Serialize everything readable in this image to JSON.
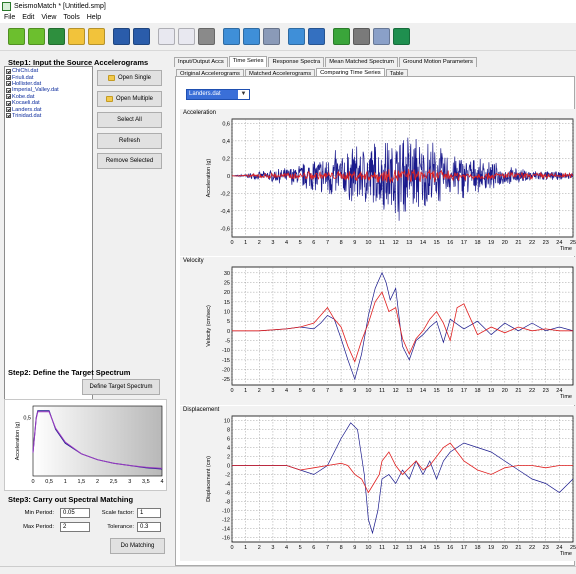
{
  "window": {
    "title": "SeismoMatch * [Untitled.smp]"
  },
  "menu": [
    "File",
    "Edit",
    "View",
    "Tools",
    "Help"
  ],
  "toolbar": {
    "icons": [
      {
        "name": "new-project-icon",
        "color": "#6cbf2e"
      },
      {
        "name": "open-project-icon",
        "color": "#6cbf2e"
      },
      {
        "name": "save-project-icon",
        "color": "#2e8f3e"
      },
      {
        "name": "open-folder-icon",
        "color": "#f2c33b"
      },
      {
        "name": "open-folder-2-icon",
        "color": "#f2c33b"
      },
      {
        "name": "save-disk-icon",
        "color": "#2a5caa"
      },
      {
        "name": "save-as-disk-icon",
        "color": "#2a5caa"
      },
      {
        "name": "report-icon",
        "color": "#e8e8f0"
      },
      {
        "name": "copy-icon",
        "color": "#e8e8f0"
      },
      {
        "name": "print-icon",
        "color": "#8a8a8a"
      },
      {
        "name": "zoom-in-icon",
        "color": "#3f8fd8"
      },
      {
        "name": "zoom-out-icon",
        "color": "#3f8fd8"
      },
      {
        "name": "settings-gear-icon",
        "color": "#8a9ab8"
      },
      {
        "name": "chart-icon",
        "color": "#3f8fd8"
      },
      {
        "name": "layers-icon",
        "color": "#3470c0"
      },
      {
        "name": "help-icon",
        "color": "#3aa53a"
      },
      {
        "name": "tools-icon",
        "color": "#7a7a7a"
      },
      {
        "name": "link-icon",
        "color": "#8aa0c8"
      },
      {
        "name": "globe-icon",
        "color": "#1f8f4f"
      }
    ]
  },
  "left": {
    "step1": "Step1: Input the Source Accelerograms",
    "files": [
      "ChiChi.dat",
      "Friuli.dat",
      "Hollister.dat",
      "Imperial_Valley.dat",
      "Kobe.dat",
      "Kocaeli.dat",
      "Landers.dat",
      "Trinidad.dat"
    ],
    "buttons": {
      "open_single": "Open Single",
      "open_multiple": "Open Multiple",
      "select_all": "Select All",
      "refresh": "Refresh",
      "remove_selected": "Remove Selected"
    },
    "step2": "Step2: Define the Target Spectrum",
    "define_target": "Define Target Spectrum",
    "step3": "Step3: Carry out Spectral Matching",
    "min_period_label": "Min Period:",
    "min_period": "0.05",
    "max_period_label": "Max Period:",
    "max_period": "2",
    "scale_factor_label": "Scale factor:",
    "scale_factor": "1",
    "tolerance_label": "Tolerance:",
    "tolerance": "0.3",
    "do_matching": "Do Matching"
  },
  "tabs_top": [
    "Input/Output Accs",
    "Time Series",
    "Response Spectra",
    "Mean Matched Spectrum",
    "Ground Motion Parameters"
  ],
  "tabs_sub": [
    "Original Accelerograms",
    "Matched Accelerograms",
    "Comparing Time Series",
    "Table"
  ],
  "selected_record": "Landers.dat",
  "colors": {
    "original": "#1a1a8c",
    "matched": "#e02020",
    "dropdown": "#3a6fd8"
  },
  "chart_data": [
    {
      "type": "line",
      "title": "",
      "xlabel": "",
      "ylabel": "Acceleration (g)",
      "xlim": [
        0,
        25
      ],
      "ylim": [
        -0.7,
        0.65
      ],
      "x_ticks": [
        0,
        1,
        2,
        3,
        4,
        5,
        6,
        7,
        8,
        9,
        10,
        11,
        12,
        13,
        14,
        15,
        16,
        17,
        18,
        19,
        20,
        21,
        22,
        23,
        24,
        25
      ],
      "y_ticks": [
        0.6,
        0.4,
        0.2,
        0,
        -0.2,
        -0.4,
        -0.6
      ],
      "panel_label": "Acceleration",
      "x_axis_label": "Time",
      "series": [
        {
          "role": "original",
          "envelope": [
            [
              2,
              0.05
            ],
            [
              4,
              0.1
            ],
            [
              6,
              0.2
            ],
            [
              7,
              0.32
            ],
            [
              8,
              0.3
            ],
            [
              9,
              0.38
            ],
            [
              10,
              0.45
            ],
            [
              11,
              0.42
            ],
            [
              12,
              0.55
            ],
            [
              13,
              0.52
            ],
            [
              14,
              0.45
            ],
            [
              14.5,
              0.5
            ],
            [
              15,
              0.4
            ],
            [
              16,
              0.28
            ],
            [
              17,
              0.3
            ],
            [
              18,
              0.2
            ],
            [
              19,
              0.18
            ],
            [
              20,
              0.12
            ],
            [
              22,
              0.08
            ],
            [
              25,
              0.04
            ]
          ]
        },
        {
          "role": "matched",
          "envelope": [
            [
              2,
              0.03
            ],
            [
              5,
              0.05
            ],
            [
              8,
              0.06
            ],
            [
              10,
              0.08
            ],
            [
              12,
              0.1
            ],
            [
              15,
              0.08
            ],
            [
              18,
              0.05
            ],
            [
              25,
              0.03
            ]
          ]
        }
      ]
    },
    {
      "type": "line",
      "title": "",
      "xlabel": "",
      "ylabel": "Velocity (cm/sec)",
      "xlim": [
        0,
        25
      ],
      "ylim": [
        -28,
        33
      ],
      "x_ticks": [
        0,
        1,
        2,
        3,
        4,
        5,
        6,
        7,
        8,
        9,
        10,
        11,
        12,
        13,
        14,
        15,
        16,
        17,
        18,
        19,
        20,
        21,
        22,
        23,
        24
      ],
      "y_ticks": [
        30,
        25,
        20,
        15,
        10,
        5,
        0,
        -5,
        -10,
        -15,
        -20,
        -25
      ],
      "panel_label": "Velocity",
      "x_axis_label": "Time",
      "series": [
        {
          "role": "original",
          "points": [
            [
              0,
              0
            ],
            [
              2,
              0
            ],
            [
              4,
              1
            ],
            [
              5,
              2
            ],
            [
              6,
              1
            ],
            [
              6.5,
              4
            ],
            [
              7,
              8
            ],
            [
              7.5,
              6
            ],
            [
              8,
              -4
            ],
            [
              8.5,
              -15
            ],
            [
              9,
              -25
            ],
            [
              9.5,
              -12
            ],
            [
              10,
              8
            ],
            [
              10.5,
              22
            ],
            [
              11,
              30
            ],
            [
              11.3,
              25
            ],
            [
              11.6,
              16
            ],
            [
              12,
              22
            ],
            [
              12.5,
              -8
            ],
            [
              13,
              -15
            ],
            [
              13.5,
              -5
            ],
            [
              14,
              -2
            ],
            [
              14.5,
              2
            ],
            [
              15,
              5
            ],
            [
              15.5,
              -6
            ],
            [
              16,
              6
            ],
            [
              17,
              1
            ],
            [
              18,
              5
            ],
            [
              19,
              -2
            ],
            [
              20,
              4
            ],
            [
              21,
              0
            ],
            [
              22,
              4
            ],
            [
              23,
              0
            ],
            [
              24,
              2
            ],
            [
              25,
              0
            ]
          ]
        },
        {
          "role": "matched",
          "points": [
            [
              0,
              0
            ],
            [
              2,
              0
            ],
            [
              4,
              1
            ],
            [
              5,
              2
            ],
            [
              6,
              4
            ],
            [
              6.5,
              8
            ],
            [
              7,
              12
            ],
            [
              7.5,
              6
            ],
            [
              8,
              2
            ],
            [
              8.5,
              -8
            ],
            [
              9,
              -16
            ],
            [
              9.5,
              -5
            ],
            [
              10,
              4
            ],
            [
              10.5,
              15
            ],
            [
              11,
              20
            ],
            [
              11.5,
              10
            ],
            [
              12,
              12
            ],
            [
              12.5,
              -4
            ],
            [
              13,
              -12
            ],
            [
              13.5,
              -4
            ],
            [
              14,
              0
            ],
            [
              14.5,
              6
            ],
            [
              15,
              10
            ],
            [
              15.5,
              4
            ],
            [
              16,
              -5
            ],
            [
              16.5,
              12
            ],
            [
              17,
              14
            ],
            [
              17.5,
              6
            ],
            [
              18,
              -2
            ],
            [
              19,
              2
            ],
            [
              20,
              -1
            ],
            [
              21,
              2
            ],
            [
              22,
              0
            ],
            [
              23,
              1
            ],
            [
              24,
              0
            ],
            [
              25,
              0
            ]
          ]
        }
      ]
    },
    {
      "type": "line",
      "title": "",
      "xlabel": "",
      "ylabel": "Displacement (cm)",
      "xlim": [
        0,
        25
      ],
      "ylim": [
        -17,
        11
      ],
      "x_ticks": [
        0,
        1,
        2,
        3,
        4,
        5,
        6,
        7,
        8,
        9,
        10,
        11,
        12,
        13,
        14,
        15,
        16,
        17,
        18,
        19,
        20,
        21,
        22,
        23,
        24,
        25
      ],
      "y_ticks": [
        10,
        8,
        6,
        4,
        2,
        0,
        -2,
        -4,
        -6,
        -8,
        -10,
        -12,
        -14,
        -16
      ],
      "panel_label": "Displacement",
      "x_axis_label": "Time",
      "series": [
        {
          "role": "original",
          "points": [
            [
              0,
              0
            ],
            [
              2,
              0
            ],
            [
              4,
              0
            ],
            [
              5,
              -1
            ],
            [
              6,
              -2
            ],
            [
              7,
              0
            ],
            [
              8,
              6
            ],
            [
              8.7,
              9.5
            ],
            [
              9.2,
              8
            ],
            [
              9.7,
              -2
            ],
            [
              10,
              -12
            ],
            [
              10.3,
              -15
            ],
            [
              10.7,
              -10
            ],
            [
              11,
              -3
            ],
            [
              11.5,
              -2
            ],
            [
              12,
              -4
            ],
            [
              12.5,
              -1
            ],
            [
              13,
              -3
            ],
            [
              13.5,
              1
            ],
            [
              14,
              -2
            ],
            [
              14.5,
              1
            ],
            [
              15,
              -3
            ],
            [
              15.5,
              1
            ],
            [
              16,
              3
            ],
            [
              17,
              5
            ],
            [
              18,
              4
            ],
            [
              19,
              3
            ],
            [
              20,
              1
            ],
            [
              21,
              -1
            ],
            [
              22,
              -3
            ],
            [
              23,
              -4
            ],
            [
              24,
              -6
            ],
            [
              25,
              -3
            ]
          ]
        },
        {
          "role": "matched",
          "points": [
            [
              0,
              0
            ],
            [
              2,
              0
            ],
            [
              4,
              0
            ],
            [
              5,
              -1
            ],
            [
              6,
              -0.5
            ],
            [
              7,
              0
            ],
            [
              8,
              0.5
            ],
            [
              8.5,
              0
            ],
            [
              9,
              -2
            ],
            [
              9.5,
              -3
            ],
            [
              10,
              -6
            ],
            [
              10.4,
              -4
            ],
            [
              10.8,
              -2
            ],
            [
              11,
              1
            ],
            [
              11.5,
              3
            ],
            [
              12,
              0
            ],
            [
              12.5,
              -2
            ],
            [
              13,
              -0.5
            ],
            [
              13.5,
              1
            ],
            [
              14,
              -1
            ],
            [
              14.5,
              0
            ],
            [
              15,
              2
            ],
            [
              15.5,
              4
            ],
            [
              16,
              5
            ],
            [
              16.5,
              3
            ],
            [
              17,
              1
            ],
            [
              18,
              -1
            ],
            [
              19,
              -2
            ],
            [
              20,
              -0.5
            ],
            [
              21,
              0
            ],
            [
              22,
              0
            ],
            [
              23,
              -0.5
            ],
            [
              24,
              0
            ],
            [
              25,
              0
            ]
          ]
        }
      ]
    },
    {
      "type": "line",
      "title": "",
      "xlabel": "",
      "ylabel": "Acceleration (g)",
      "xlim": [
        0,
        4
      ],
      "ylim": [
        0,
        0.6
      ],
      "x_ticks": [
        0,
        0.5,
        1,
        1.5,
        2,
        2.5,
        3,
        3.5,
        4
      ],
      "x_tick_labels": [
        "0",
        "0,5",
        "1",
        "1,5",
        "2",
        "2,5",
        "3",
        "3,5",
        "4"
      ],
      "y_ticks": [
        0.5
      ],
      "y_tick_labels": [
        "0,5"
      ],
      "series": [
        {
          "role": "target",
          "points": [
            [
              0,
              0.2
            ],
            [
              0.1,
              0.5
            ],
            [
              0.15,
              0.56
            ],
            [
              0.5,
              0.56
            ],
            [
              0.7,
              0.4
            ],
            [
              1,
              0.28
            ],
            [
              1.5,
              0.19
            ],
            [
              2,
              0.14
            ],
            [
              2.5,
              0.11
            ],
            [
              3,
              0.09
            ],
            [
              3.5,
              0.07
            ],
            [
              4,
              0.06
            ]
          ]
        },
        {
          "role": "mean",
          "points": [
            [
              0,
              0.2
            ],
            [
              0.1,
              0.49
            ],
            [
              0.15,
              0.55
            ],
            [
              0.5,
              0.55
            ],
            [
              0.7,
              0.41
            ],
            [
              1,
              0.29
            ],
            [
              1.5,
              0.19
            ],
            [
              2,
              0.14
            ],
            [
              2.5,
              0.11
            ],
            [
              3,
              0.09
            ],
            [
              3.5,
              0.075
            ],
            [
              4,
              0.065
            ]
          ]
        }
      ]
    }
  ]
}
